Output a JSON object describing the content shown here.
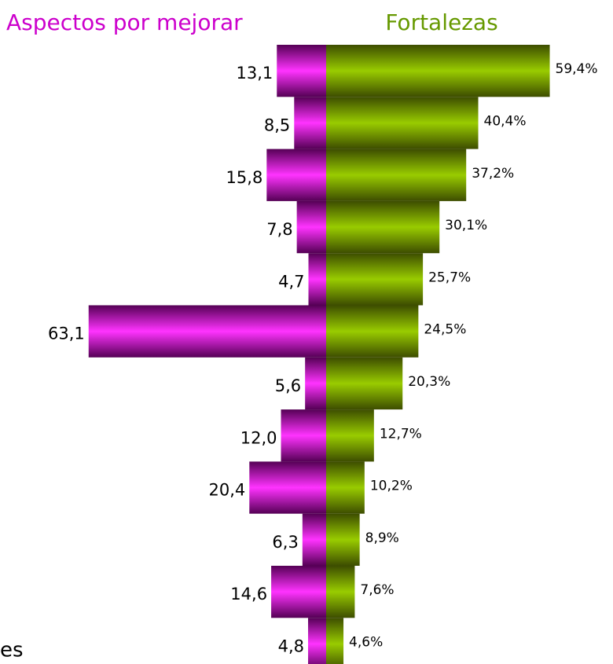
{
  "chart_data": {
    "type": "butterfly",
    "series": [
      {
        "name": "Aspectos por mejorar",
        "color": "#cc00cc",
        "values": [
          13.1,
          8.5,
          15.8,
          7.8,
          4.7,
          63.1,
          5.6,
          12.0,
          20.4,
          6.3,
          14.6,
          4.8
        ],
        "value_labels": [
          "13,1",
          "8,5",
          "15,8",
          "7,8",
          "4,7",
          "63,1",
          "5,6",
          "12,0",
          "20,4",
          "6,3",
          "14,6",
          "4,8"
        ]
      },
      {
        "name": "Fortalezas",
        "color": "#669900",
        "values": [
          59.4,
          40.4,
          37.2,
          30.1,
          25.7,
          24.5,
          20.3,
          12.7,
          10.2,
          8.9,
          7.6,
          4.6
        ],
        "value_labels": [
          "59,4%",
          "40,4%",
          "37,2%",
          "30,1%",
          "25,7%",
          "24,5%",
          "20,3%",
          "12,7%",
          "10,2%",
          "8,9%",
          "7,6%",
          "4,6%"
        ]
      }
    ],
    "annotation": "es"
  }
}
